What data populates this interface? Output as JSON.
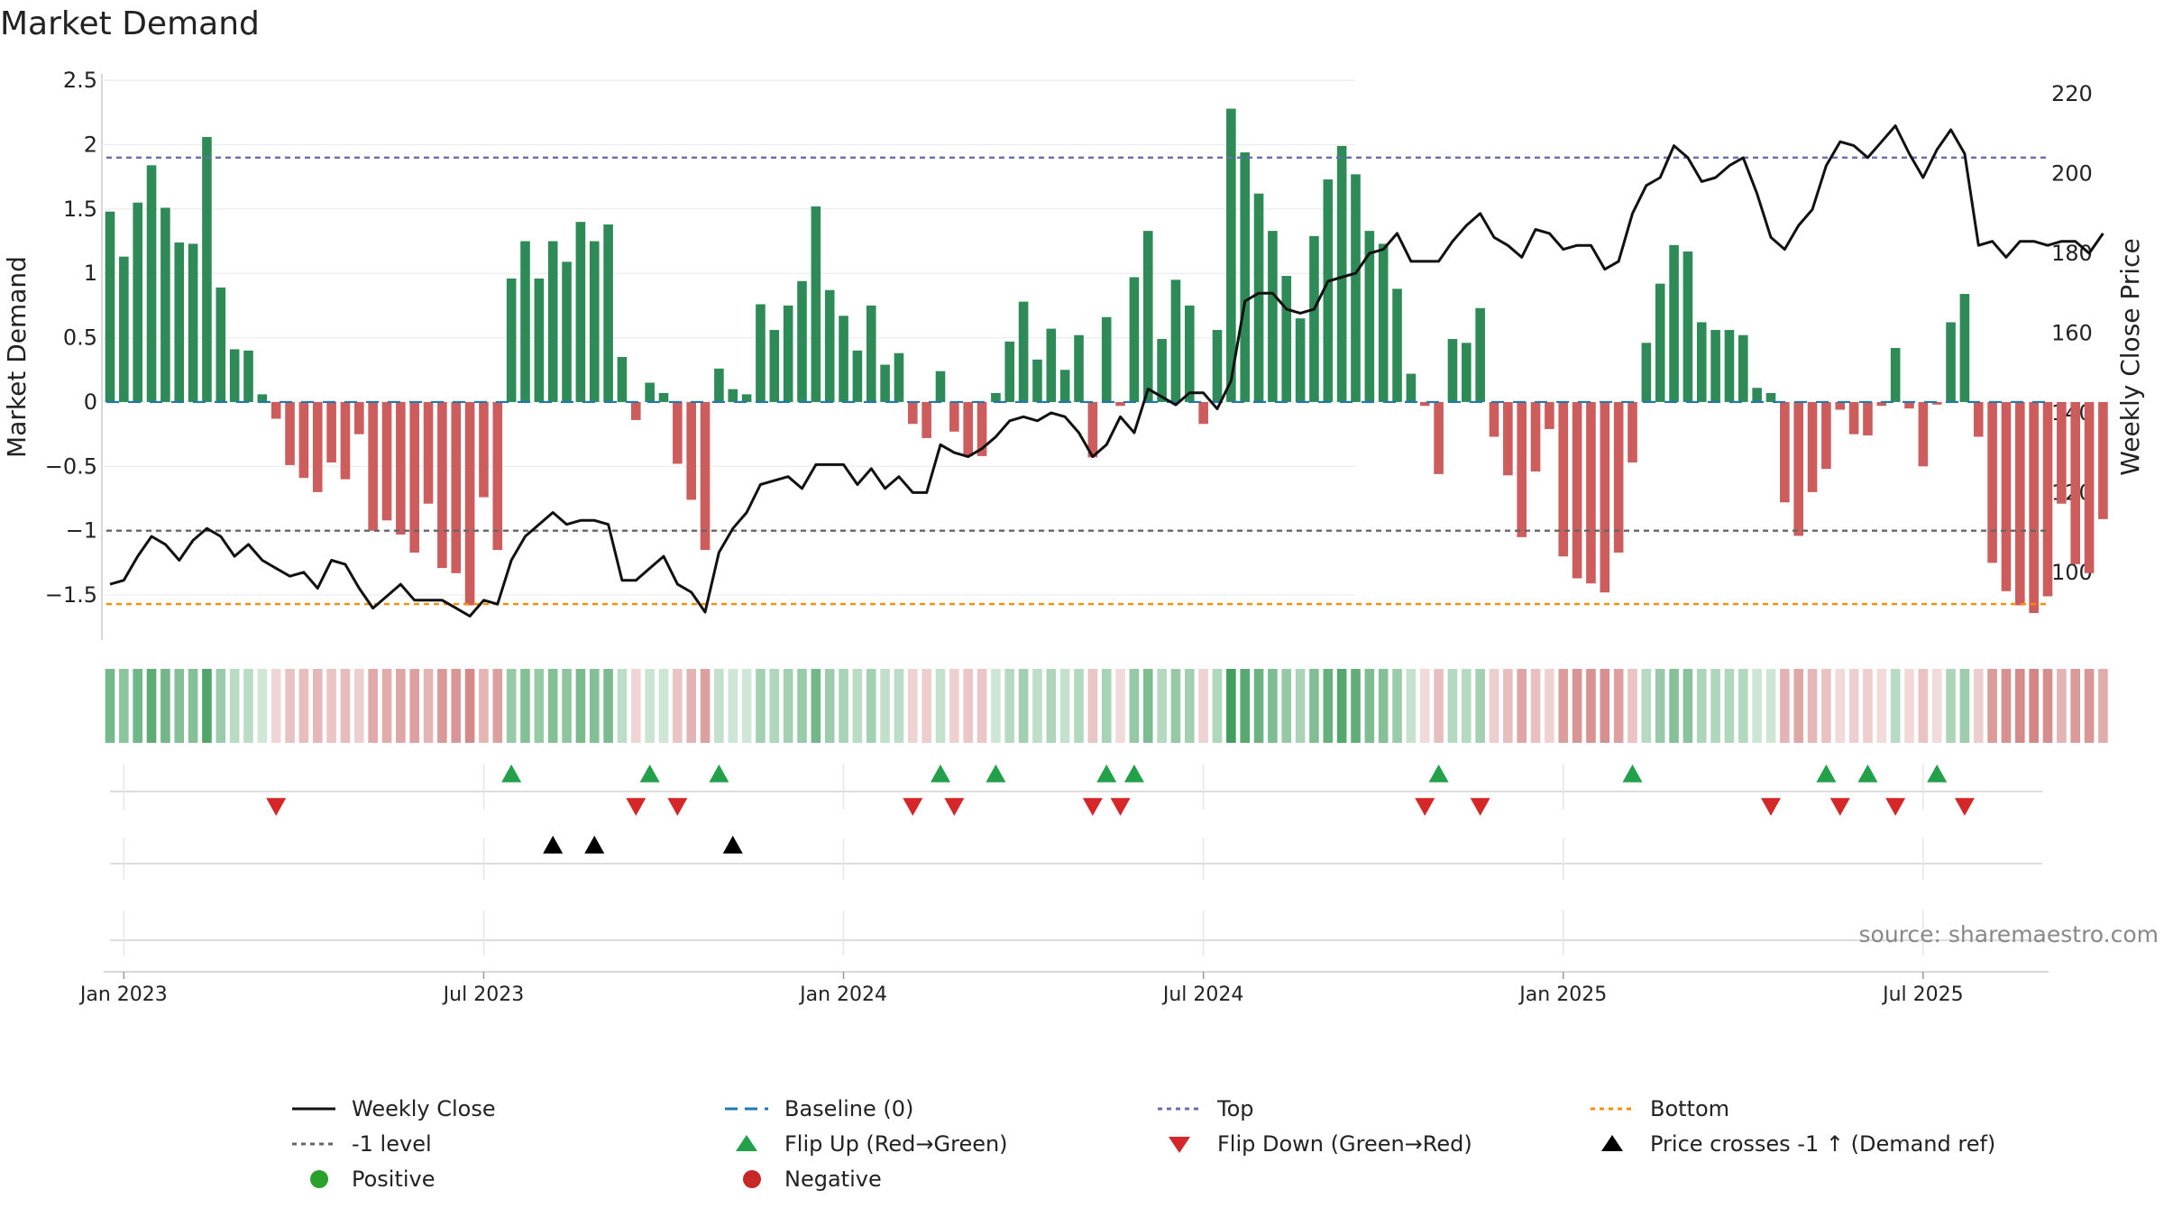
{
  "chart_data": {
    "type": "bar+line",
    "title": "Market Demand",
    "ylabel_left": "Market Demand",
    "ylabel_right": "Weekly Close Price",
    "source": "source: sharemaestro.com",
    "left_ylim": [
      -1.85,
      2.55
    ],
    "left_ticks": [
      "2.5",
      "2",
      "1.5",
      "1",
      "0.5",
      "0",
      "−0.5",
      "−1",
      "−1.5"
    ],
    "left_tick_values": [
      2.5,
      2,
      1.5,
      1,
      0.5,
      0,
      -0.5,
      -1,
      -1.5
    ],
    "right_ylim": [
      83,
      225
    ],
    "right_ticks": [
      "220",
      "200",
      "180",
      "160",
      "140",
      "120",
      "100"
    ],
    "right_tick_values": [
      220,
      200,
      180,
      160,
      140,
      120,
      100
    ],
    "x_ticks": [
      "Jan 2023",
      "Jul 2023",
      "Jan 2024",
      "Jul 2024",
      "Jan 2025",
      "Jul 2025"
    ],
    "x_tick_weeks": [
      1,
      27,
      53,
      79,
      105,
      131
    ],
    "levels": {
      "top": 1.9,
      "minus_one": -1.0,
      "bottom": -1.57,
      "baseline": 0
    },
    "demand": [
      1.48,
      1.13,
      1.55,
      1.84,
      1.51,
      1.24,
      1.23,
      2.06,
      0.89,
      0.41,
      0.4,
      0.06,
      -0.13,
      -0.49,
      -0.59,
      -0.7,
      -0.47,
      -0.6,
      -0.25,
      -1.0,
      -0.92,
      -1.03,
      -1.17,
      -0.79,
      -1.29,
      -1.33,
      -1.58,
      -0.74,
      -1.15,
      0.96,
      1.25,
      0.96,
      1.25,
      1.09,
      1.4,
      1.25,
      1.38,
      0.35,
      -0.14,
      0.15,
      0.07,
      -0.48,
      -0.76,
      -1.15,
      0.26,
      0.1,
      0.06,
      0.76,
      0.56,
      0.75,
      0.94,
      1.52,
      0.87,
      0.67,
      0.4,
      0.75,
      0.29,
      0.38,
      -0.17,
      -0.28,
      0.24,
      -0.23,
      -0.42,
      -0.42,
      0.07,
      0.47,
      0.78,
      0.33,
      0.57,
      0.25,
      0.52,
      -0.43,
      0.66,
      -0.03,
      0.97,
      1.33,
      0.49,
      0.95,
      0.75,
      -0.17,
      0.56,
      2.28,
      1.94,
      1.62,
      1.33,
      0.98,
      0.65,
      1.29,
      1.73,
      1.99,
      1.77,
      1.33,
      1.23,
      0.88,
      0.22,
      -0.03,
      -0.56,
      0.49,
      0.46,
      0.73,
      -0.27,
      -0.57,
      -1.05,
      -0.54,
      -0.21,
      -1.2,
      -1.37,
      -1.41,
      -1.48,
      -1.17,
      -0.47,
      0.46,
      0.92,
      1.22,
      1.17,
      0.62,
      0.56,
      0.56,
      0.52,
      0.11,
      0.07,
      -0.78,
      -1.04,
      -0.7,
      -0.52,
      -0.06,
      -0.25,
      -0.26,
      -0.03,
      0.42,
      -0.05,
      -0.5,
      -0.02,
      0.62,
      0.84,
      -0.27,
      -1.25,
      -1.47,
      -1.58,
      -1.64,
      -1.51,
      -0.79,
      -1.26,
      -1.33,
      -0.91
    ],
    "price": [
      97,
      98,
      104,
      109,
      107,
      103,
      108,
      111,
      109,
      104,
      107,
      103,
      101,
      99,
      100,
      96,
      103,
      102,
      96,
      91,
      94,
      97,
      93,
      93,
      93,
      91,
      89,
      93,
      92,
      103,
      109,
      112,
      115,
      112,
      113,
      113,
      112,
      98,
      98,
      101,
      104,
      97,
      95,
      90,
      105,
      111,
      115,
      122,
      123,
      124,
      121,
      127,
      127,
      127,
      122,
      126,
      121,
      124,
      120,
      120,
      132,
      130,
      129,
      131,
      134,
      138,
      139,
      138,
      140,
      139,
      135,
      129,
      132,
      139,
      135,
      146,
      144,
      142,
      145,
      145,
      141,
      148,
      168,
      170,
      170,
      166,
      165,
      166,
      173,
      174,
      175,
      180,
      181,
      185,
      178,
      178,
      178,
      183,
      187,
      190,
      184,
      182,
      179,
      186,
      185,
      181,
      182,
      182,
      176,
      178,
      190,
      197,
      199,
      207,
      204,
      198,
      199,
      202,
      204,
      195,
      184,
      181,
      187,
      191,
      202,
      208,
      207,
      204,
      208,
      212,
      205,
      199,
      206,
      211,
      205,
      182,
      183,
      179,
      183,
      183,
      182,
      183,
      183,
      180,
      185
    ],
    "flip_up_weeks": [
      29,
      39,
      44,
      60,
      64,
      72,
      74,
      96,
      110,
      124,
      127,
      132
    ],
    "flip_down_weeks": [
      12,
      38,
      41,
      58,
      61,
      71,
      73,
      95,
      99,
      120,
      125,
      129,
      134
    ],
    "price_cross_weeks": [
      32,
      35,
      45
    ],
    "legend": [
      {
        "label": "Weekly Close",
        "marker": "line-black"
      },
      {
        "label": "Baseline (0)",
        "marker": "dash-blue"
      },
      {
        "label": "Top",
        "marker": "dot-purple"
      },
      {
        "label": "Bottom",
        "marker": "dot-orange"
      },
      {
        "label": "-1 level",
        "marker": "dot-gray"
      },
      {
        "label": "Flip Up (Red→Green)",
        "marker": "tri-up-green"
      },
      {
        "label": "Flip Down (Green→Red)",
        "marker": "tri-down-red"
      },
      {
        "label": "Price crosses -1 ↑ (Demand ref)",
        "marker": "tri-up-black"
      },
      {
        "label": "Positive",
        "marker": "circle-green"
      },
      {
        "label": "Negative",
        "marker": "circle-red"
      }
    ],
    "colors": {
      "positive": "#2e8b57",
      "negative": "#cd5c5c",
      "price": "#111111",
      "baseline": "#1f77b4",
      "top": "#6b6bb5",
      "bottom": "#ff8c00",
      "minus_one": "#666666",
      "flip_up": "#22a04a",
      "flip_down": "#d62728",
      "cross": "#000000",
      "positive_dot": "#2ca02c",
      "negative_dot": "#c62828"
    }
  }
}
